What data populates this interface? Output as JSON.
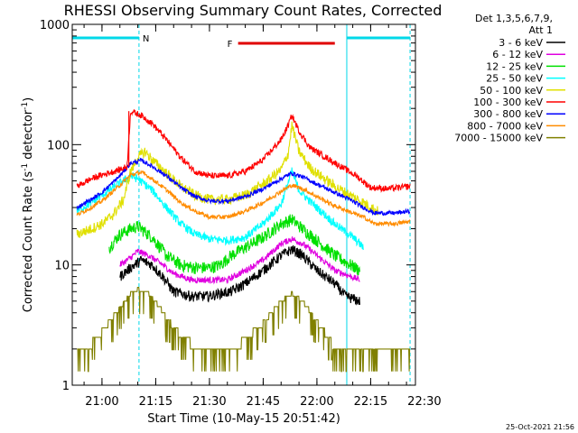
{
  "chart_data": {
    "type": "line",
    "title": "RHESSI Observing Summary Count Rates, Corrected",
    "xlabel": "Start Time (10-May-15 20:51:42)",
    "ylabel_main": "Corrected Count Rate (s",
    "ylabel_sup1": "-1",
    "ylabel_mid": " detector",
    "ylabel_sup2": "-1",
    "ylabel_end": ")",
    "y_scale": "log",
    "ylim": [
      1,
      1000
    ],
    "xlim": [
      "20:51:42",
      "22:27:30"
    ],
    "y_ticks": [
      {
        "value": 1,
        "label": "1"
      },
      {
        "value": 10,
        "label": "10"
      },
      {
        "value": 100,
        "label": "100"
      },
      {
        "value": 1000,
        "label": "1000"
      }
    ],
    "x_ticks": [
      {
        "value": "21:00",
        "label": "21:00"
      },
      {
        "value": "21:15",
        "label": "21:15"
      },
      {
        "value": "21:30",
        "label": "21:30"
      },
      {
        "value": "21:45",
        "label": "21:45"
      },
      {
        "value": "22:00",
        "label": "22:00"
      },
      {
        "value": "22:15",
        "label": "22:15"
      },
      {
        "value": "22:30",
        "label": "22:30"
      }
    ],
    "legend_header_1": "Det 1,3,5,6,7,9,",
    "legend_header_2": "Att 1",
    "legend_position": "right",
    "series": [
      {
        "name": "3 - 6 keV",
        "color": "#000000",
        "noise": 0.05,
        "points": [
          [
            "21:05",
            8
          ],
          [
            "21:08",
            9.5
          ],
          [
            "21:11",
            11
          ],
          [
            "21:14",
            10
          ],
          [
            "21:17",
            8
          ],
          [
            "21:20",
            6
          ],
          [
            "21:25",
            5.5
          ],
          [
            "21:30",
            5.5
          ],
          [
            "21:33",
            5.8
          ],
          [
            "21:36",
            6
          ],
          [
            "21:40",
            7
          ],
          [
            "21:45",
            9
          ],
          [
            "21:50",
            12
          ],
          [
            "21:53",
            13.5
          ],
          [
            "21:56",
            12
          ],
          [
            "22:00",
            9
          ],
          [
            "22:05",
            7
          ],
          [
            "22:08",
            5.5
          ],
          [
            "22:12",
            5
          ]
        ]
      },
      {
        "name": "6 - 12 keV",
        "color": "#e000e0",
        "noise": 0.03,
        "points": [
          [
            "21:05",
            10
          ],
          [
            "21:08",
            11.5
          ],
          [
            "21:10",
            13
          ],
          [
            "21:13",
            12
          ],
          [
            "21:17",
            10
          ],
          [
            "21:20",
            8.5
          ],
          [
            "21:25",
            7.5
          ],
          [
            "21:30",
            7.5
          ],
          [
            "21:35",
            7.5
          ],
          [
            "21:40",
            9
          ],
          [
            "21:45",
            11
          ],
          [
            "21:50",
            15
          ],
          [
            "21:53",
            16.5
          ],
          [
            "21:56",
            15
          ],
          [
            "22:00",
            12
          ],
          [
            "22:05",
            9
          ],
          [
            "22:12",
            7.5
          ]
        ]
      },
      {
        "name": "12 - 25 keV",
        "color": "#00e000",
        "noise": 0.06,
        "points": [
          [
            "21:02",
            14
          ],
          [
            "21:05",
            18
          ],
          [
            "21:08",
            20
          ],
          [
            "21:10",
            21
          ],
          [
            "21:14",
            17
          ],
          [
            "21:18",
            12
          ],
          [
            "21:22",
            10
          ],
          [
            "21:26",
            9.5
          ],
          [
            "21:30",
            9.5
          ],
          [
            "21:33",
            10
          ],
          [
            "21:36",
            12
          ],
          [
            "21:40",
            14
          ],
          [
            "21:45",
            17
          ],
          [
            "21:50",
            22
          ],
          [
            "21:53",
            24
          ],
          [
            "21:56",
            20
          ],
          [
            "22:00",
            16
          ],
          [
            "22:05",
            12
          ],
          [
            "22:12",
            9
          ]
        ]
      },
      {
        "name": "25 - 50 keV",
        "color": "#00ffff",
        "noise": 0.04,
        "points": [
          [
            "20:53",
            28
          ],
          [
            "20:57",
            33
          ],
          [
            "21:00",
            38
          ],
          [
            "21:05",
            48
          ],
          [
            "21:08",
            55
          ],
          [
            "21:10",
            52
          ],
          [
            "21:14",
            42
          ],
          [
            "21:18",
            30
          ],
          [
            "21:22",
            22
          ],
          [
            "21:26",
            18
          ],
          [
            "21:30",
            16.5
          ],
          [
            "21:35",
            16
          ],
          [
            "21:40",
            17
          ],
          [
            "21:45",
            22
          ],
          [
            "21:50",
            32
          ],
          [
            "21:53",
            60
          ],
          [
            "21:55",
            42
          ],
          [
            "21:58",
            34
          ],
          [
            "22:00",
            30
          ],
          [
            "22:05",
            22
          ],
          [
            "22:10",
            17
          ],
          [
            "22:13",
            14
          ]
        ]
      },
      {
        "name": "50 - 100 keV",
        "color": "#e0e000",
        "noise": 0.05,
        "points": [
          [
            "20:53",
            18
          ],
          [
            "20:57",
            20
          ],
          [
            "21:00",
            22
          ],
          [
            "21:03",
            26
          ],
          [
            "21:06",
            35
          ],
          [
            "21:08",
            60
          ],
          [
            "21:10",
            78
          ],
          [
            "21:12",
            88
          ],
          [
            "21:14",
            75
          ],
          [
            "21:18",
            58
          ],
          [
            "21:22",
            45
          ],
          [
            "21:26",
            38
          ],
          [
            "21:30",
            35
          ],
          [
            "21:35",
            35
          ],
          [
            "21:40",
            38
          ],
          [
            "21:45",
            47
          ],
          [
            "21:50",
            62
          ],
          [
            "21:52",
            85
          ],
          [
            "21:53",
            145
          ],
          [
            "21:55",
            88
          ],
          [
            "21:58",
            65
          ],
          [
            "22:00",
            58
          ],
          [
            "22:05",
            45
          ],
          [
            "22:10",
            37
          ],
          [
            "22:13",
            33
          ],
          [
            "22:17",
            28
          ]
        ]
      },
      {
        "name": "100 - 300 keV",
        "color": "#ff0000",
        "noise": 0.03,
        "points": [
          [
            "20:53",
            45
          ],
          [
            "20:57",
            52
          ],
          [
            "21:00",
            56
          ],
          [
            "21:05",
            62
          ],
          [
            "21:07",
            66
          ],
          [
            "21:08",
            190
          ],
          [
            "21:11",
            175
          ],
          [
            "21:14",
            150
          ],
          [
            "21:18",
            110
          ],
          [
            "21:22",
            78
          ],
          [
            "21:26",
            60
          ],
          [
            "21:30",
            55
          ],
          [
            "21:35",
            55
          ],
          [
            "21:40",
            60
          ],
          [
            "21:45",
            75
          ],
          [
            "21:50",
            110
          ],
          [
            "21:52",
            145
          ],
          [
            "21:53",
            175
          ],
          [
            "21:55",
            130
          ],
          [
            "21:58",
            95
          ],
          [
            "22:02",
            80
          ],
          [
            "22:07",
            65
          ],
          [
            "22:11",
            55
          ],
          [
            "22:15",
            44
          ],
          [
            "22:20",
            43
          ],
          [
            "22:26",
            45
          ]
        ]
      },
      {
        "name": "300 - 800 keV",
        "color": "#0000ff",
        "noise": 0.02,
        "points": [
          [
            "20:53",
            30
          ],
          [
            "20:57",
            35
          ],
          [
            "21:00",
            40
          ],
          [
            "21:05",
            55
          ],
          [
            "21:08",
            70
          ],
          [
            "21:11",
            74
          ],
          [
            "21:14",
            66
          ],
          [
            "21:18",
            55
          ],
          [
            "21:22",
            44
          ],
          [
            "21:26",
            37
          ],
          [
            "21:30",
            34
          ],
          [
            "21:35",
            34
          ],
          [
            "21:40",
            37
          ],
          [
            "21:45",
            43
          ],
          [
            "21:50",
            52
          ],
          [
            "21:53",
            58
          ],
          [
            "21:56",
            54
          ],
          [
            "22:00",
            47
          ],
          [
            "22:05",
            40
          ],
          [
            "22:10",
            34
          ],
          [
            "22:13",
            30
          ],
          [
            "22:16",
            27
          ],
          [
            "22:22",
            27
          ],
          [
            "22:26",
            28
          ]
        ]
      },
      {
        "name": "800 - 7000 keV",
        "color": "#ff8c00",
        "noise": 0.02,
        "points": [
          [
            "20:53",
            26
          ],
          [
            "20:57",
            30
          ],
          [
            "21:00",
            34
          ],
          [
            "21:05",
            46
          ],
          [
            "21:08",
            56
          ],
          [
            "21:11",
            59
          ],
          [
            "21:14",
            52
          ],
          [
            "21:18",
            42
          ],
          [
            "21:22",
            33
          ],
          [
            "21:26",
            28
          ],
          [
            "21:30",
            25
          ],
          [
            "21:35",
            25
          ],
          [
            "21:40",
            28
          ],
          [
            "21:45",
            33
          ],
          [
            "21:50",
            41
          ],
          [
            "21:53",
            46
          ],
          [
            "21:56",
            43
          ],
          [
            "22:00",
            37
          ],
          [
            "22:05",
            31
          ],
          [
            "22:10",
            27
          ],
          [
            "22:13",
            25
          ],
          [
            "22:16",
            22
          ],
          [
            "22:22",
            22
          ],
          [
            "22:26",
            23
          ]
        ]
      },
      {
        "name": "7000 - 15000 keV",
        "color": "#808000",
        "noise": 0,
        "points": [
          [
            "20:53",
            2
          ],
          [
            "20:58",
            2.3
          ],
          [
            "21:00",
            2.8
          ],
          [
            "21:04",
            4
          ],
          [
            "21:08",
            5.8
          ],
          [
            "21:10",
            6.3
          ],
          [
            "21:13",
            5.8
          ],
          [
            "21:16",
            4.5
          ],
          [
            "21:20",
            3
          ],
          [
            "21:25",
            2.2
          ],
          [
            "21:30",
            1.8
          ],
          [
            "21:35",
            1.8
          ],
          [
            "21:40",
            2.4
          ],
          [
            "21:45",
            3.3
          ],
          [
            "21:50",
            5
          ],
          [
            "21:53",
            5.8
          ],
          [
            "21:56",
            5
          ],
          [
            "22:00",
            3.4
          ],
          [
            "22:04",
            2.3
          ],
          [
            "22:08",
            1.8
          ],
          [
            "22:14",
            1.8
          ],
          [
            "22:22",
            1.8
          ],
          [
            "22:26",
            1.8
          ]
        ]
      }
    ],
    "annotations": [
      {
        "label": "N",
        "color": "#00d8e8",
        "kind": "night",
        "ranges": [
          [
            "20:51:42",
            "21:10:20"
          ],
          [
            "22:08:20",
            "22:26:00"
          ]
        ]
      },
      {
        "label": "F",
        "color": "#e00000",
        "kind": "flare",
        "range": [
          "21:38:00",
          "22:05:00"
        ]
      }
    ],
    "attenuator_time": "21:07:30"
  },
  "timestamp": "25-Oct-2021 21:56"
}
